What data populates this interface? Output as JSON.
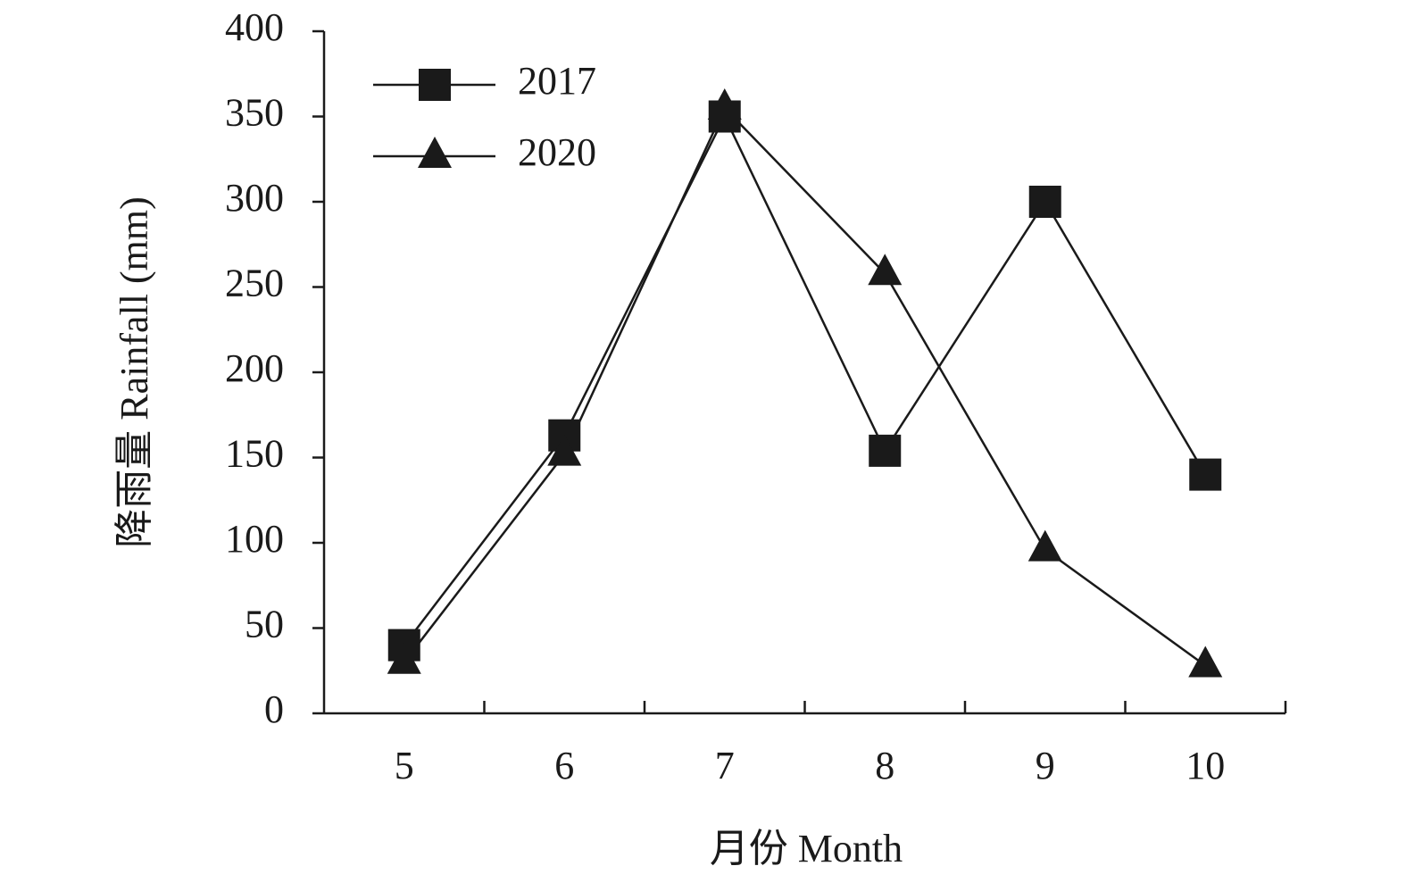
{
  "chart_data": {
    "type": "line",
    "x_label": "月份 Month",
    "y_label": "降雨量 Rainfall (mm)",
    "categories": [
      "5",
      "6",
      "7",
      "8",
      "9",
      "10"
    ],
    "series": [
      {
        "name": "2017",
        "color": "#1a1a1a",
        "marker": "square",
        "values": [
          40,
          163,
          350,
          154,
          300,
          140
        ]
      },
      {
        "name": "2020",
        "color": "#1a1a1a",
        "marker": "triangle",
        "values": [
          30,
          152,
          355,
          258,
          96,
          28
        ]
      }
    ],
    "ylim": [
      0,
      400
    ],
    "yticks": [
      0,
      50,
      100,
      150,
      200,
      250,
      300,
      350,
      400
    ],
    "grid": false,
    "legend": "top-left"
  }
}
